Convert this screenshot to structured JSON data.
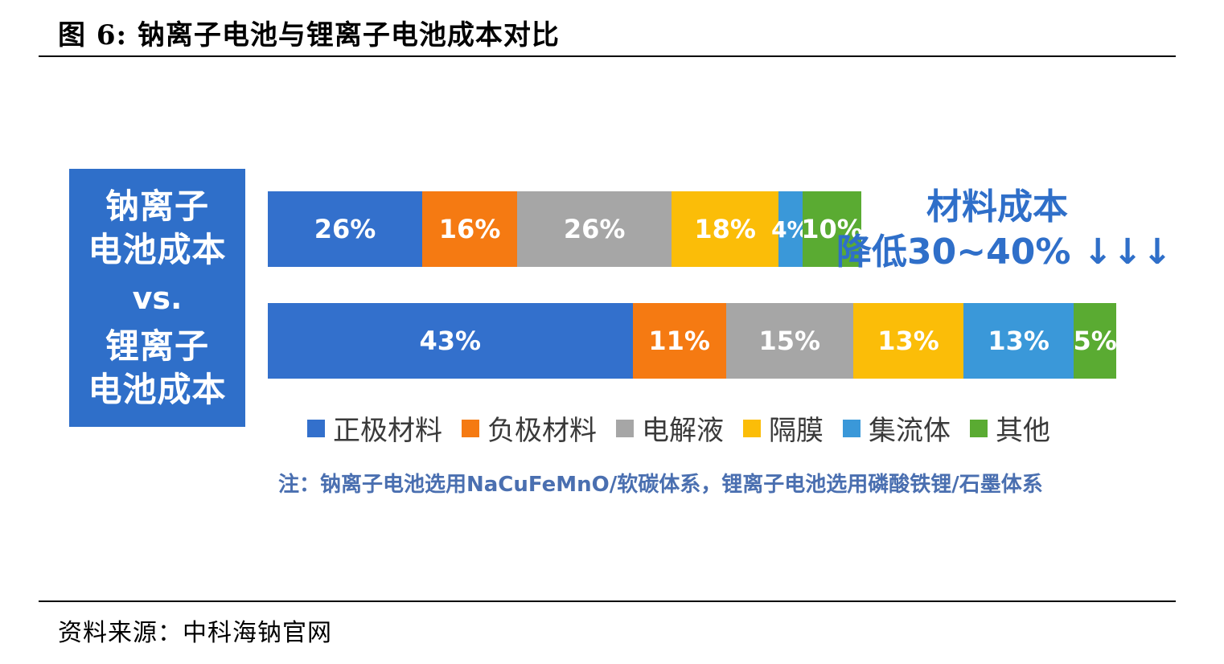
{
  "header": {
    "title": "图 6:  钠离子电池与锂离子电池成本对比"
  },
  "left_label": {
    "line1": "钠离子",
    "line2": "电池成本",
    "vs": "vs.",
    "line3": "锂离子",
    "line4": "电池成本"
  },
  "callout": {
    "line1": "材料成本",
    "line2": "降低30~40% ↓↓↓"
  },
  "note": "注：钠离子电池选用NaCuFeMnO/软碳体系，锂离子电池选用磷酸铁锂/石墨体系",
  "source": "资料来源：中科海钠官网",
  "colors": {
    "正极材料": "#3370cc",
    "负极材料": "#f57a12",
    "电解液": "#a6a6a6",
    "隔膜": "#fbbd08",
    "集流体": "#3a98d9",
    "其他": "#5aab32"
  },
  "chart_data": {
    "type": "bar",
    "orientation": "horizontal",
    "stacked": true,
    "categories": [
      "钠离子电池成本",
      "锂离子电池成本"
    ],
    "series": [
      {
        "name": "正极材料",
        "values": [
          26,
          43
        ],
        "labels": [
          "26%",
          "43%"
        ]
      },
      {
        "name": "负极材料",
        "values": [
          16,
          11
        ],
        "labels": [
          "16%",
          "11%"
        ]
      },
      {
        "name": "电解液",
        "values": [
          26,
          15
        ],
        "labels": [
          "26%",
          "15%"
        ]
      },
      {
        "name": "隔膜",
        "values": [
          18,
          13
        ],
        "labels": [
          "18%",
          "13%"
        ]
      },
      {
        "name": "集流体",
        "values": [
          4,
          13
        ],
        "labels": [
          "4%",
          "13%"
        ]
      },
      {
        "name": "其他",
        "values": [
          10,
          5
        ],
        "labels": [
          "10%",
          "5%"
        ]
      }
    ],
    "relative_total": [
      70,
      100
    ],
    "legend_position": "bottom"
  }
}
